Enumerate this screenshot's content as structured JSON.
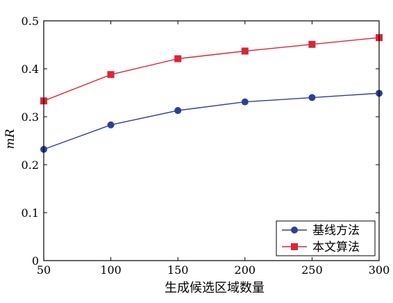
{
  "chart_data": {
    "type": "line",
    "title": "",
    "xlabel": "生成候选区域数量",
    "ylabel": "mR",
    "x": [
      50,
      100,
      150,
      200,
      250,
      300
    ],
    "xlim": [
      50,
      300
    ],
    "ylim": [
      0,
      0.5
    ],
    "x_ticks": [
      "50",
      "100",
      "150",
      "200",
      "250",
      "300"
    ],
    "y_ticks": [
      "0",
      "0.1",
      "0.2",
      "0.3",
      "0.4",
      "0.5"
    ],
    "grid": false,
    "legend_position": "bottom-right",
    "series": [
      {
        "name": "基线方法",
        "values": [
          0.232,
          0.283,
          0.313,
          0.331,
          0.34,
          0.349
        ],
        "color": "#2e3f94",
        "marker": "circle"
      },
      {
        "name": "本文算法",
        "values": [
          0.333,
          0.388,
          0.421,
          0.437,
          0.451,
          0.465
        ],
        "color": "#d9263a",
        "marker": "square"
      }
    ]
  }
}
